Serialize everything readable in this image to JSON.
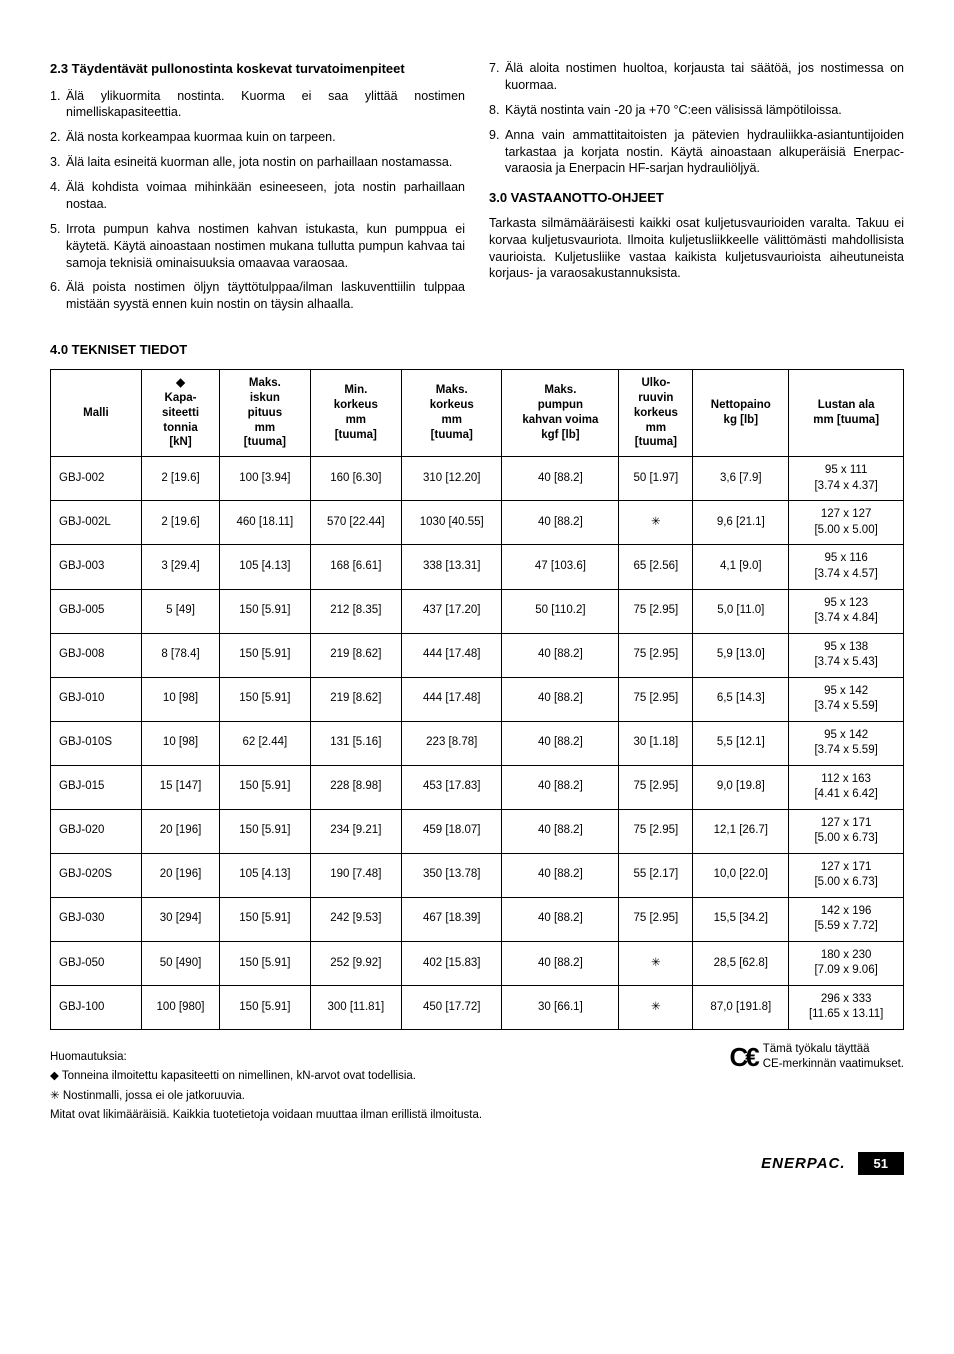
{
  "left": {
    "heading": "2.3 Täydentävät pullonostinta koskevat turvatoimenpiteet",
    "items": [
      "Älä ylikuormita nostinta. Kuorma ei saa ylittää nostimen nimelliskapasiteettia.",
      "Älä nosta korkeampaa kuormaa kuin on tarpeen.",
      "Älä laita esineitä kuorman alle, jota nostin on parhaillaan nostamassa.",
      "Älä kohdista voimaa mihinkään esineeseen, jota nostin parhaillaan nostaa.",
      "Irrota pumpun kahva nostimen kahvan istukasta, kun pumppua ei käytetä. Käytä ainoastaan nostimen mukana tullutta pumpun kahvaa tai samoja teknisiä ominaisuuksia omaavaa varaosaa.",
      "Älä poista nostimen öljyn täyttötulppaa/ilman laskuventtiilin tulppaa mistään syystä ennen kuin nostin on täysin alhaalla."
    ]
  },
  "right": {
    "items": [
      "Älä aloita nostimen huoltoa, korjausta tai säätöä, jos nostimessa on kuormaa.",
      "Käytä nostinta vain -20 ja +70 °C:een välisissä lämpötiloissa.",
      "Anna vain ammattitaitoisten ja pätevien hydrauliikka-asiantuntijoiden tarkastaa ja korjata nostin. Käytä ainoastaan alkuperäisiä Enerpac-varaosia ja Enerpacin HF-sarjan hydrauliöljyä."
    ],
    "start": 7,
    "sec3_title": "3.0 VASTAANOTTO-OHJEET",
    "sec3_body": "Tarkasta silmämääräisesti kaikki osat kuljetusvaurioiden varalta. Takuu ei korvaa kuljetusvauriota. Ilmoita kuljetusliikkeelle välittömästi mahdollisista vaurioista. Kuljetusliike vastaa kaikista kuljetusvaurioista aiheutuneista korjaus- ja varaosakustannuksista."
  },
  "spec_title": "4.0  TEKNISET TIEDOT",
  "table": {
    "headers": [
      "Malli",
      "◆\nKapa-\nsiteetti\ntonnia\n[kN]",
      "Maks.\niskun\npituus\nmm\n[tuuma]",
      "Min.\nkorkeus\nmm\n[tuuma]",
      "Maks.\nkorkeus\nmm\n[tuuma]",
      "Maks.\npumpun\nkahvan voima\nkgf [lb]",
      "Ulko-\nruuvin\nkorkeus\nmm\n[tuuma]",
      "Nettopaino\nkg [lb]",
      "Lustan ala\nmm [tuuma]"
    ],
    "rows": [
      [
        "GBJ-002",
        "2 [19.6]",
        "100 [3.94]",
        "160 [6.30]",
        "310 [12.20]",
        "40 [88.2]",
        "50 [1.97]",
        "3,6 [7.9]",
        "95 x 111\n[3.74 x 4.37]"
      ],
      [
        "GBJ-002L",
        "2 [19.6]",
        "460 [18.11]",
        "570 [22.44]",
        "1030 [40.55]",
        "40 [88.2]",
        "✳",
        "9,6 [21.1]",
        "127 x 127\n[5.00 x 5.00]"
      ],
      [
        "GBJ-003",
        "3 [29.4]",
        "105 [4.13]",
        "168 [6.61]",
        "338 [13.31]",
        "47 [103.6]",
        "65 [2.56]",
        "4,1 [9.0]",
        "95 x 116\n[3.74 x 4.57]"
      ],
      [
        "GBJ-005",
        "5 [49]",
        "150 [5.91]",
        "212 [8.35]",
        "437 [17.20]",
        "50 [110.2]",
        "75 [2.95]",
        "5,0 [11.0]",
        "95 x 123\n[3.74 x 4.84]"
      ],
      [
        "GBJ-008",
        "8 [78.4]",
        "150 [5.91]",
        "219 [8.62]",
        "444 [17.48]",
        "40 [88.2]",
        "75 [2.95]",
        "5,9 [13.0]",
        "95 x 138\n[3.74 x 5.43]"
      ],
      [
        "GBJ-010",
        "10 [98]",
        "150 [5.91]",
        "219 [8.62]",
        "444 [17.48]",
        "40 [88.2]",
        "75 [2.95]",
        "6,5 [14.3]",
        "95 x 142\n[3.74 x 5.59]"
      ],
      [
        "GBJ-010S",
        "10 [98]",
        "62 [2.44]",
        "131 [5.16]",
        "223 [8.78]",
        "40 [88.2]",
        "30 [1.18]",
        "5,5 [12.1]",
        "95 x 142\n[3.74 x 5.59]"
      ],
      [
        "GBJ-015",
        "15 [147]",
        "150 [5.91]",
        "228 [8.98]",
        "453 [17.83]",
        "40 [88.2]",
        "75 [2.95]",
        "9,0 [19.8]",
        "112 x 163\n[4.41 x 6.42]"
      ],
      [
        "GBJ-020",
        "20 [196]",
        "150 [5.91]",
        "234 [9.21]",
        "459 [18.07]",
        "40 [88.2]",
        "75 [2.95]",
        "12,1 [26.7]",
        "127 x 171\n[5.00 x 6.73]"
      ],
      [
        "GBJ-020S",
        "20 [196]",
        "105 [4.13]",
        "190 [7.48]",
        "350 [13.78]",
        "40 [88.2]",
        "55 [2.17]",
        "10,0 [22.0]",
        "127 x 171\n[5.00 x 6.73]"
      ],
      [
        "GBJ-030",
        "30 [294]",
        "150 [5.91]",
        "242 [9.53]",
        "467 [18.39]",
        "40 [88.2]",
        "75 [2.95]",
        "15,5 [34.2]",
        "142 x 196\n[5.59 x 7.72]"
      ],
      [
        "GBJ-050",
        "50 [490]",
        "150 [5.91]",
        "252 [9.92]",
        "402 [15.83]",
        "40 [88.2]",
        "✳",
        "28,5 [62.8]",
        "180 x 230\n[7.09 x 9.06]"
      ],
      [
        "GBJ-100",
        "100 [980]",
        "150 [5.91]",
        "300 [11.81]",
        "450 [17.72]",
        "30 [66.1]",
        "✳",
        "87,0 [191.8]",
        "296 x 333\n[11.65 x 13.11]"
      ]
    ]
  },
  "notes": {
    "title": "Huomautuksia:",
    "n1": "◆ Tonneina ilmoitettu kapasiteetti on nimellinen, kN-arvot ovat todellisia.",
    "n2": "✳ Nostinmalli, jossa ei ole jatkoruuvia.",
    "n3": "Mitat ovat likimääräisiä. Kaikkia tuotetietoja voidaan muuttaa ilman erillistä ilmoitusta."
  },
  "ce_text": "Tämä työkalu täyttää\nCE-merkinnän vaatimukset.",
  "brand": "ENERPAC.",
  "page": "51"
}
